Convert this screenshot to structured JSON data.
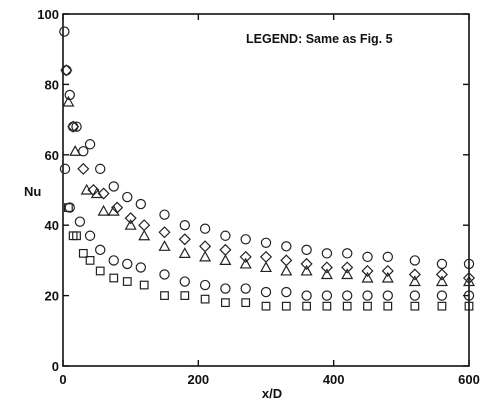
{
  "chart_data": {
    "type": "scatter",
    "title": "",
    "xlabel": "x/D",
    "ylabel": "Nu",
    "xlim": [
      0,
      600
    ],
    "ylim": [
      0,
      100
    ],
    "xticks": [
      "0",
      "200",
      "400",
      "600"
    ],
    "yticks": [
      "0",
      "20",
      "40",
      "60",
      "80",
      "100"
    ],
    "grid": false,
    "annotation": "LEGEND: Same as Fig. 5",
    "series": [
      {
        "marker": "circle",
        "x": [
          2,
          5,
          10,
          15,
          20,
          30,
          40,
          55,
          75,
          95,
          115,
          150,
          180,
          210,
          240,
          270,
          300,
          330,
          360,
          390,
          420,
          450,
          480,
          520,
          560,
          600
        ],
        "y": [
          95,
          84,
          77,
          68,
          68,
          61,
          63,
          56,
          51,
          48,
          46,
          43,
          40,
          39,
          37,
          36,
          35,
          34,
          33,
          32,
          32,
          31,
          31,
          30,
          29,
          29
        ]
      },
      {
        "marker": "diamond",
        "x": [
          5,
          15,
          30,
          45,
          60,
          80,
          100,
          120,
          150,
          180,
          210,
          240,
          270,
          300,
          330,
          360,
          390,
          420,
          450,
          480,
          520,
          560,
          600
        ],
        "y": [
          84,
          68,
          56,
          50,
          49,
          45,
          42,
          40,
          38,
          36,
          34,
          33,
          31,
          31,
          30,
          29,
          28,
          28,
          27,
          27,
          26,
          26,
          25
        ]
      },
      {
        "marker": "triangle",
        "x": [
          8,
          18,
          35,
          50,
          60,
          75,
          100,
          120,
          150,
          180,
          210,
          240,
          270,
          300,
          330,
          360,
          390,
          420,
          450,
          480,
          520,
          560,
          600
        ],
        "y": [
          75,
          61,
          50,
          49,
          44,
          44,
          40,
          37,
          34,
          32,
          31,
          30,
          29,
          28,
          27,
          27,
          26,
          26,
          25,
          25,
          24,
          24,
          24
        ]
      },
      {
        "marker": "circle-lower",
        "x": [
          3,
          10,
          25,
          40,
          55,
          75,
          95,
          115,
          150,
          180,
          210,
          240,
          270,
          300,
          330,
          360,
          390,
          420,
          450,
          480,
          520,
          560,
          600
        ],
        "y": [
          56,
          45,
          41,
          37,
          33,
          30,
          29,
          28,
          26,
          24,
          23,
          22,
          22,
          21,
          21,
          20,
          20,
          20,
          20,
          20,
          20,
          20,
          20
        ]
      },
      {
        "marker": "square",
        "x": [
          8,
          15,
          20,
          30,
          40,
          55,
          75,
          95,
          120,
          150,
          180,
          210,
          240,
          270,
          300,
          330,
          360,
          390,
          420,
          450,
          480,
          520,
          560,
          600
        ],
        "y": [
          45,
          37,
          37,
          32,
          30,
          27,
          25,
          24,
          23,
          20,
          20,
          19,
          18,
          18,
          17,
          17,
          17,
          17,
          17,
          17,
          17,
          17,
          17,
          17
        ]
      }
    ]
  }
}
